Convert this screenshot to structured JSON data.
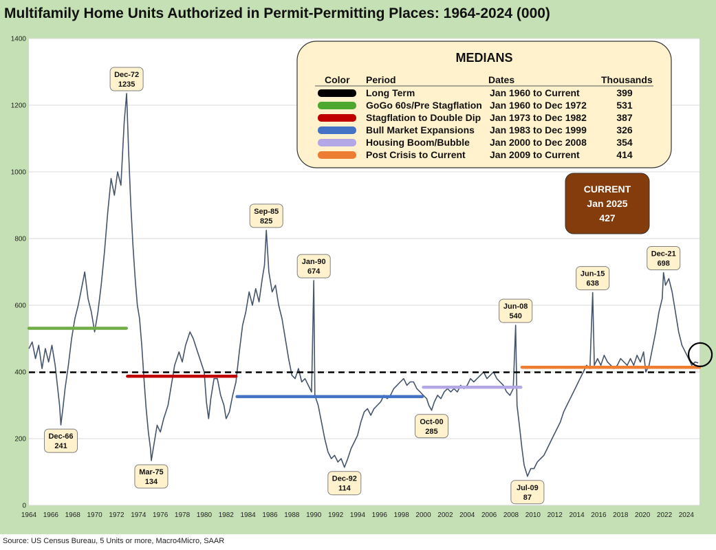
{
  "title": "Multifamily Home Units Authorized in Permit-Permitting Places: 1964-2024 (000)",
  "source": "Source: US Census Bureau, 5 Units or more, Macro4Micro, SAAR",
  "colors": {
    "line": "#44546a",
    "frame": "#c5e0b4",
    "box_fill": "#fff2cc",
    "current_fill": "#843c0c"
  },
  "medians_box": {
    "title": "MEDIANS",
    "headers": [
      "Color",
      "Period",
      "Dates",
      "Thousands"
    ],
    "rows": [
      {
        "color": "#000000",
        "period": "Long Term",
        "dates": "Jan 1960 to Current",
        "value": "399"
      },
      {
        "color": "#4ea72e",
        "period": "GoGo 60s/Pre Stagflation",
        "dates": "Jan 1960 to Dec 1972",
        "value": "531"
      },
      {
        "color": "#c00000",
        "period": "Stagflation to Double Dip",
        "dates": "Jan 1973 to Dec 1982",
        "value": "387"
      },
      {
        "color": "#4472c4",
        "period": "Bull Market Expansions",
        "dates": "Jan 1983 to Dec 1999",
        "value": "326"
      },
      {
        "color": "#b4a7e5",
        "period": "Housing Boom/Bubble",
        "dates": "Jan 2000 to Dec 2008",
        "value": "354"
      },
      {
        "color": "#ed7d31",
        "period": "Post Crisis to Current",
        "dates": "Jan 2009 to Current",
        "value": "414"
      }
    ]
  },
  "current_box": {
    "line1": "CURRENT",
    "line2": "Jan 2025",
    "line3": "427"
  },
  "chart_data": {
    "type": "line",
    "x_range": [
      1964,
      2025.2
    ],
    "ylim": [
      0,
      1400
    ],
    "yticks": [
      0,
      200,
      400,
      600,
      800,
      1000,
      1200,
      1400
    ],
    "xticks": [
      1964,
      1966,
      1968,
      1970,
      1972,
      1974,
      1976,
      1978,
      1980,
      1982,
      1984,
      1986,
      1988,
      1990,
      1992,
      1994,
      1996,
      1998,
      2000,
      2002,
      2004,
      2006,
      2008,
      2010,
      2012,
      2014,
      2016,
      2018,
      2020,
      2022,
      2024
    ],
    "grid": true,
    "series": [
      {
        "points": [
          [
            1964.0,
            470
          ],
          [
            1964.3,
            490
          ],
          [
            1964.6,
            440
          ],
          [
            1964.9,
            480
          ],
          [
            1965.2,
            410
          ],
          [
            1965.5,
            470
          ],
          [
            1965.8,
            430
          ],
          [
            1966.1,
            480
          ],
          [
            1966.4,
            420
          ],
          [
            1966.6,
            360
          ],
          [
            1966.8,
            300
          ],
          [
            1966.92,
            241
          ],
          [
            1967.1,
            290
          ],
          [
            1967.3,
            350
          ],
          [
            1967.6,
            420
          ],
          [
            1967.9,
            500
          ],
          [
            1968.2,
            560
          ],
          [
            1968.5,
            600
          ],
          [
            1968.8,
            650
          ],
          [
            1969.1,
            700
          ],
          [
            1969.4,
            620
          ],
          [
            1969.7,
            580
          ],
          [
            1970.0,
            520
          ],
          [
            1970.3,
            580
          ],
          [
            1970.6,
            660
          ],
          [
            1970.9,
            760
          ],
          [
            1971.2,
            880
          ],
          [
            1971.5,
            980
          ],
          [
            1971.8,
            930
          ],
          [
            1972.1,
            1000
          ],
          [
            1972.4,
            960
          ],
          [
            1972.7,
            1150
          ],
          [
            1972.92,
            1235
          ],
          [
            1973.1,
            1060
          ],
          [
            1973.3,
            900
          ],
          [
            1973.5,
            780
          ],
          [
            1973.7,
            680
          ],
          [
            1973.9,
            600
          ],
          [
            1974.1,
            560
          ],
          [
            1974.3,
            480
          ],
          [
            1974.5,
            380
          ],
          [
            1974.7,
            290
          ],
          [
            1974.9,
            220
          ],
          [
            1975.1,
            170
          ],
          [
            1975.17,
            134
          ],
          [
            1975.4,
            180
          ],
          [
            1975.7,
            240
          ],
          [
            1976.0,
            220
          ],
          [
            1976.3,
            260
          ],
          [
            1976.7,
            300
          ],
          [
            1977.0,
            360
          ],
          [
            1977.3,
            420
          ],
          [
            1977.7,
            460
          ],
          [
            1978.0,
            430
          ],
          [
            1978.3,
            480
          ],
          [
            1978.7,
            520
          ],
          [
            1979.0,
            500
          ],
          [
            1979.3,
            470
          ],
          [
            1979.7,
            430
          ],
          [
            1980.0,
            400
          ],
          [
            1980.2,
            310
          ],
          [
            1980.4,
            260
          ],
          [
            1980.6,
            320
          ],
          [
            1980.9,
            380
          ],
          [
            1981.2,
            380
          ],
          [
            1981.5,
            330
          ],
          [
            1981.8,
            300
          ],
          [
            1982.0,
            260
          ],
          [
            1982.3,
            280
          ],
          [
            1982.6,
            330
          ],
          [
            1982.9,
            370
          ],
          [
            1983.2,
            460
          ],
          [
            1983.5,
            540
          ],
          [
            1983.8,
            580
          ],
          [
            1984.1,
            640
          ],
          [
            1984.4,
            600
          ],
          [
            1984.7,
            650
          ],
          [
            1985.0,
            610
          ],
          [
            1985.3,
            680
          ],
          [
            1985.5,
            720
          ],
          [
            1985.67,
            825
          ],
          [
            1985.9,
            700
          ],
          [
            1986.2,
            640
          ],
          [
            1986.5,
            660
          ],
          [
            1986.8,
            600
          ],
          [
            1987.1,
            560
          ],
          [
            1987.4,
            500
          ],
          [
            1987.7,
            440
          ],
          [
            1988.0,
            390
          ],
          [
            1988.3,
            380
          ],
          [
            1988.6,
            410
          ],
          [
            1988.9,
            370
          ],
          [
            1989.2,
            380
          ],
          [
            1989.5,
            360
          ],
          [
            1989.8,
            340
          ],
          [
            1990.0,
            674
          ],
          [
            1990.1,
            330
          ],
          [
            1990.4,
            300
          ],
          [
            1990.7,
            250
          ],
          [
            1991.0,
            200
          ],
          [
            1991.3,
            160
          ],
          [
            1991.6,
            140
          ],
          [
            1991.9,
            150
          ],
          [
            1992.2,
            130
          ],
          [
            1992.5,
            140
          ],
          [
            1992.8,
            114
          ],
          [
            1993.1,
            140
          ],
          [
            1993.4,
            170
          ],
          [
            1993.7,
            190
          ],
          [
            1994.0,
            210
          ],
          [
            1994.3,
            250
          ],
          [
            1994.6,
            280
          ],
          [
            1994.9,
            290
          ],
          [
            1995.2,
            270
          ],
          [
            1995.5,
            290
          ],
          [
            1995.8,
            300
          ],
          [
            1996.1,
            310
          ],
          [
            1996.4,
            330
          ],
          [
            1996.7,
            320
          ],
          [
            1997.0,
            330
          ],
          [
            1997.3,
            350
          ],
          [
            1997.6,
            360
          ],
          [
            1997.9,
            370
          ],
          [
            1998.2,
            380
          ],
          [
            1998.5,
            360
          ],
          [
            1998.8,
            370
          ],
          [
            1999.1,
            370
          ],
          [
            1999.4,
            350
          ],
          [
            1999.7,
            340
          ],
          [
            2000.0,
            330
          ],
          [
            2000.3,
            320
          ],
          [
            2000.5,
            300
          ],
          [
            2000.75,
            285
          ],
          [
            2001.0,
            310
          ],
          [
            2001.3,
            330
          ],
          [
            2001.6,
            320
          ],
          [
            2001.9,
            340
          ],
          [
            2002.2,
            350
          ],
          [
            2002.5,
            340
          ],
          [
            2002.8,
            350
          ],
          [
            2003.1,
            340
          ],
          [
            2003.4,
            360
          ],
          [
            2003.7,
            350
          ],
          [
            2004.0,
            360
          ],
          [
            2004.3,
            380
          ],
          [
            2004.6,
            370
          ],
          [
            2004.9,
            380
          ],
          [
            2005.2,
            390
          ],
          [
            2005.5,
            400
          ],
          [
            2005.8,
            380
          ],
          [
            2006.1,
            390
          ],
          [
            2006.4,
            400
          ],
          [
            2006.7,
            380
          ],
          [
            2007.0,
            370
          ],
          [
            2007.3,
            360
          ],
          [
            2007.6,
            340
          ],
          [
            2007.9,
            330
          ],
          [
            2008.2,
            350
          ],
          [
            2008.42,
            540
          ],
          [
            2008.55,
            300
          ],
          [
            2008.8,
            230
          ],
          [
            2009.0,
            170
          ],
          [
            2009.2,
            120
          ],
          [
            2009.5,
            87
          ],
          [
            2009.8,
            110
          ],
          [
            2010.1,
            110
          ],
          [
            2010.4,
            130
          ],
          [
            2010.7,
            140
          ],
          [
            2011.0,
            150
          ],
          [
            2011.3,
            170
          ],
          [
            2011.6,
            190
          ],
          [
            2011.9,
            210
          ],
          [
            2012.2,
            230
          ],
          [
            2012.5,
            250
          ],
          [
            2012.8,
            280
          ],
          [
            2013.1,
            300
          ],
          [
            2013.4,
            320
          ],
          [
            2013.7,
            340
          ],
          [
            2014.0,
            360
          ],
          [
            2014.3,
            380
          ],
          [
            2014.6,
            400
          ],
          [
            2014.9,
            420
          ],
          [
            2015.2,
            410
          ],
          [
            2015.45,
            638
          ],
          [
            2015.6,
            420
          ],
          [
            2015.9,
            440
          ],
          [
            2016.2,
            420
          ],
          [
            2016.5,
            450
          ],
          [
            2016.8,
            430
          ],
          [
            2017.1,
            420
          ],
          [
            2017.4,
            410
          ],
          [
            2017.7,
            420
          ],
          [
            2018.0,
            440
          ],
          [
            2018.3,
            430
          ],
          [
            2018.6,
            420
          ],
          [
            2018.9,
            440
          ],
          [
            2019.2,
            420
          ],
          [
            2019.5,
            450
          ],
          [
            2019.8,
            430
          ],
          [
            2020.1,
            460
          ],
          [
            2020.3,
            400
          ],
          [
            2020.6,
            420
          ],
          [
            2020.9,
            470
          ],
          [
            2021.2,
            520
          ],
          [
            2021.5,
            580
          ],
          [
            2021.8,
            620
          ],
          [
            2021.92,
            698
          ],
          [
            2022.1,
            660
          ],
          [
            2022.4,
            680
          ],
          [
            2022.7,
            640
          ],
          [
            2023.0,
            580
          ],
          [
            2023.3,
            520
          ],
          [
            2023.6,
            480
          ],
          [
            2023.9,
            460
          ],
          [
            2024.2,
            440
          ],
          [
            2024.5,
            420
          ],
          [
            2024.8,
            430
          ],
          [
            2025.08,
            427
          ]
        ]
      }
    ],
    "medians": [
      {
        "value": 399,
        "x_start": 1964,
        "x_end": 2025.2,
        "color": "#000000",
        "dashed": true
      },
      {
        "value": 531,
        "x_start": 1964,
        "x_end": 1972.9,
        "color": "#70ad47",
        "dashed": false
      },
      {
        "value": 387,
        "x_start": 1973.0,
        "x_end": 1982.9,
        "color": "#c00000",
        "dashed": false
      },
      {
        "value": 326,
        "x_start": 1983.0,
        "x_end": 1999.9,
        "color": "#4472c4",
        "dashed": false
      },
      {
        "value": 354,
        "x_start": 2000.0,
        "x_end": 2008.9,
        "color": "#b4a7e5",
        "dashed": false
      },
      {
        "value": 414,
        "x_start": 2009.0,
        "x_end": 2025.2,
        "color": "#ed7d31",
        "dashed": false
      }
    ],
    "annotations": [
      {
        "label": "Dec-72",
        "value": "1235",
        "x": 1972.92,
        "y": 1235,
        "side": "above"
      },
      {
        "label": "Dec-66",
        "value": "241",
        "x": 1966.92,
        "y": 241,
        "side": "below"
      },
      {
        "label": "Mar-75",
        "value": "134",
        "x": 1975.17,
        "y": 134,
        "side": "below"
      },
      {
        "label": "Sep-85",
        "value": "825",
        "x": 1985.67,
        "y": 825,
        "side": "above"
      },
      {
        "label": "Jan-90",
        "value": "674",
        "x": 1990.0,
        "y": 674,
        "side": "above"
      },
      {
        "label": "Dec-92",
        "value": "114",
        "x": 1992.8,
        "y": 114,
        "side": "below"
      },
      {
        "label": "Oct-00",
        "value": "285",
        "x": 2000.75,
        "y": 285,
        "side": "below"
      },
      {
        "label": "Jun-08",
        "value": "540",
        "x": 2008.42,
        "y": 540,
        "side": "above"
      },
      {
        "label": "Jul-09",
        "value": "87",
        "x": 2009.5,
        "y": 87,
        "side": "below"
      },
      {
        "label": "Jun-15",
        "value": "638",
        "x": 2015.45,
        "y": 638,
        "side": "above"
      },
      {
        "label": "Dec-21",
        "value": "698",
        "x": 2021.92,
        "y": 698,
        "side": "above"
      }
    ],
    "current_marker": {
      "x": 2025.08,
      "y": 427
    }
  }
}
